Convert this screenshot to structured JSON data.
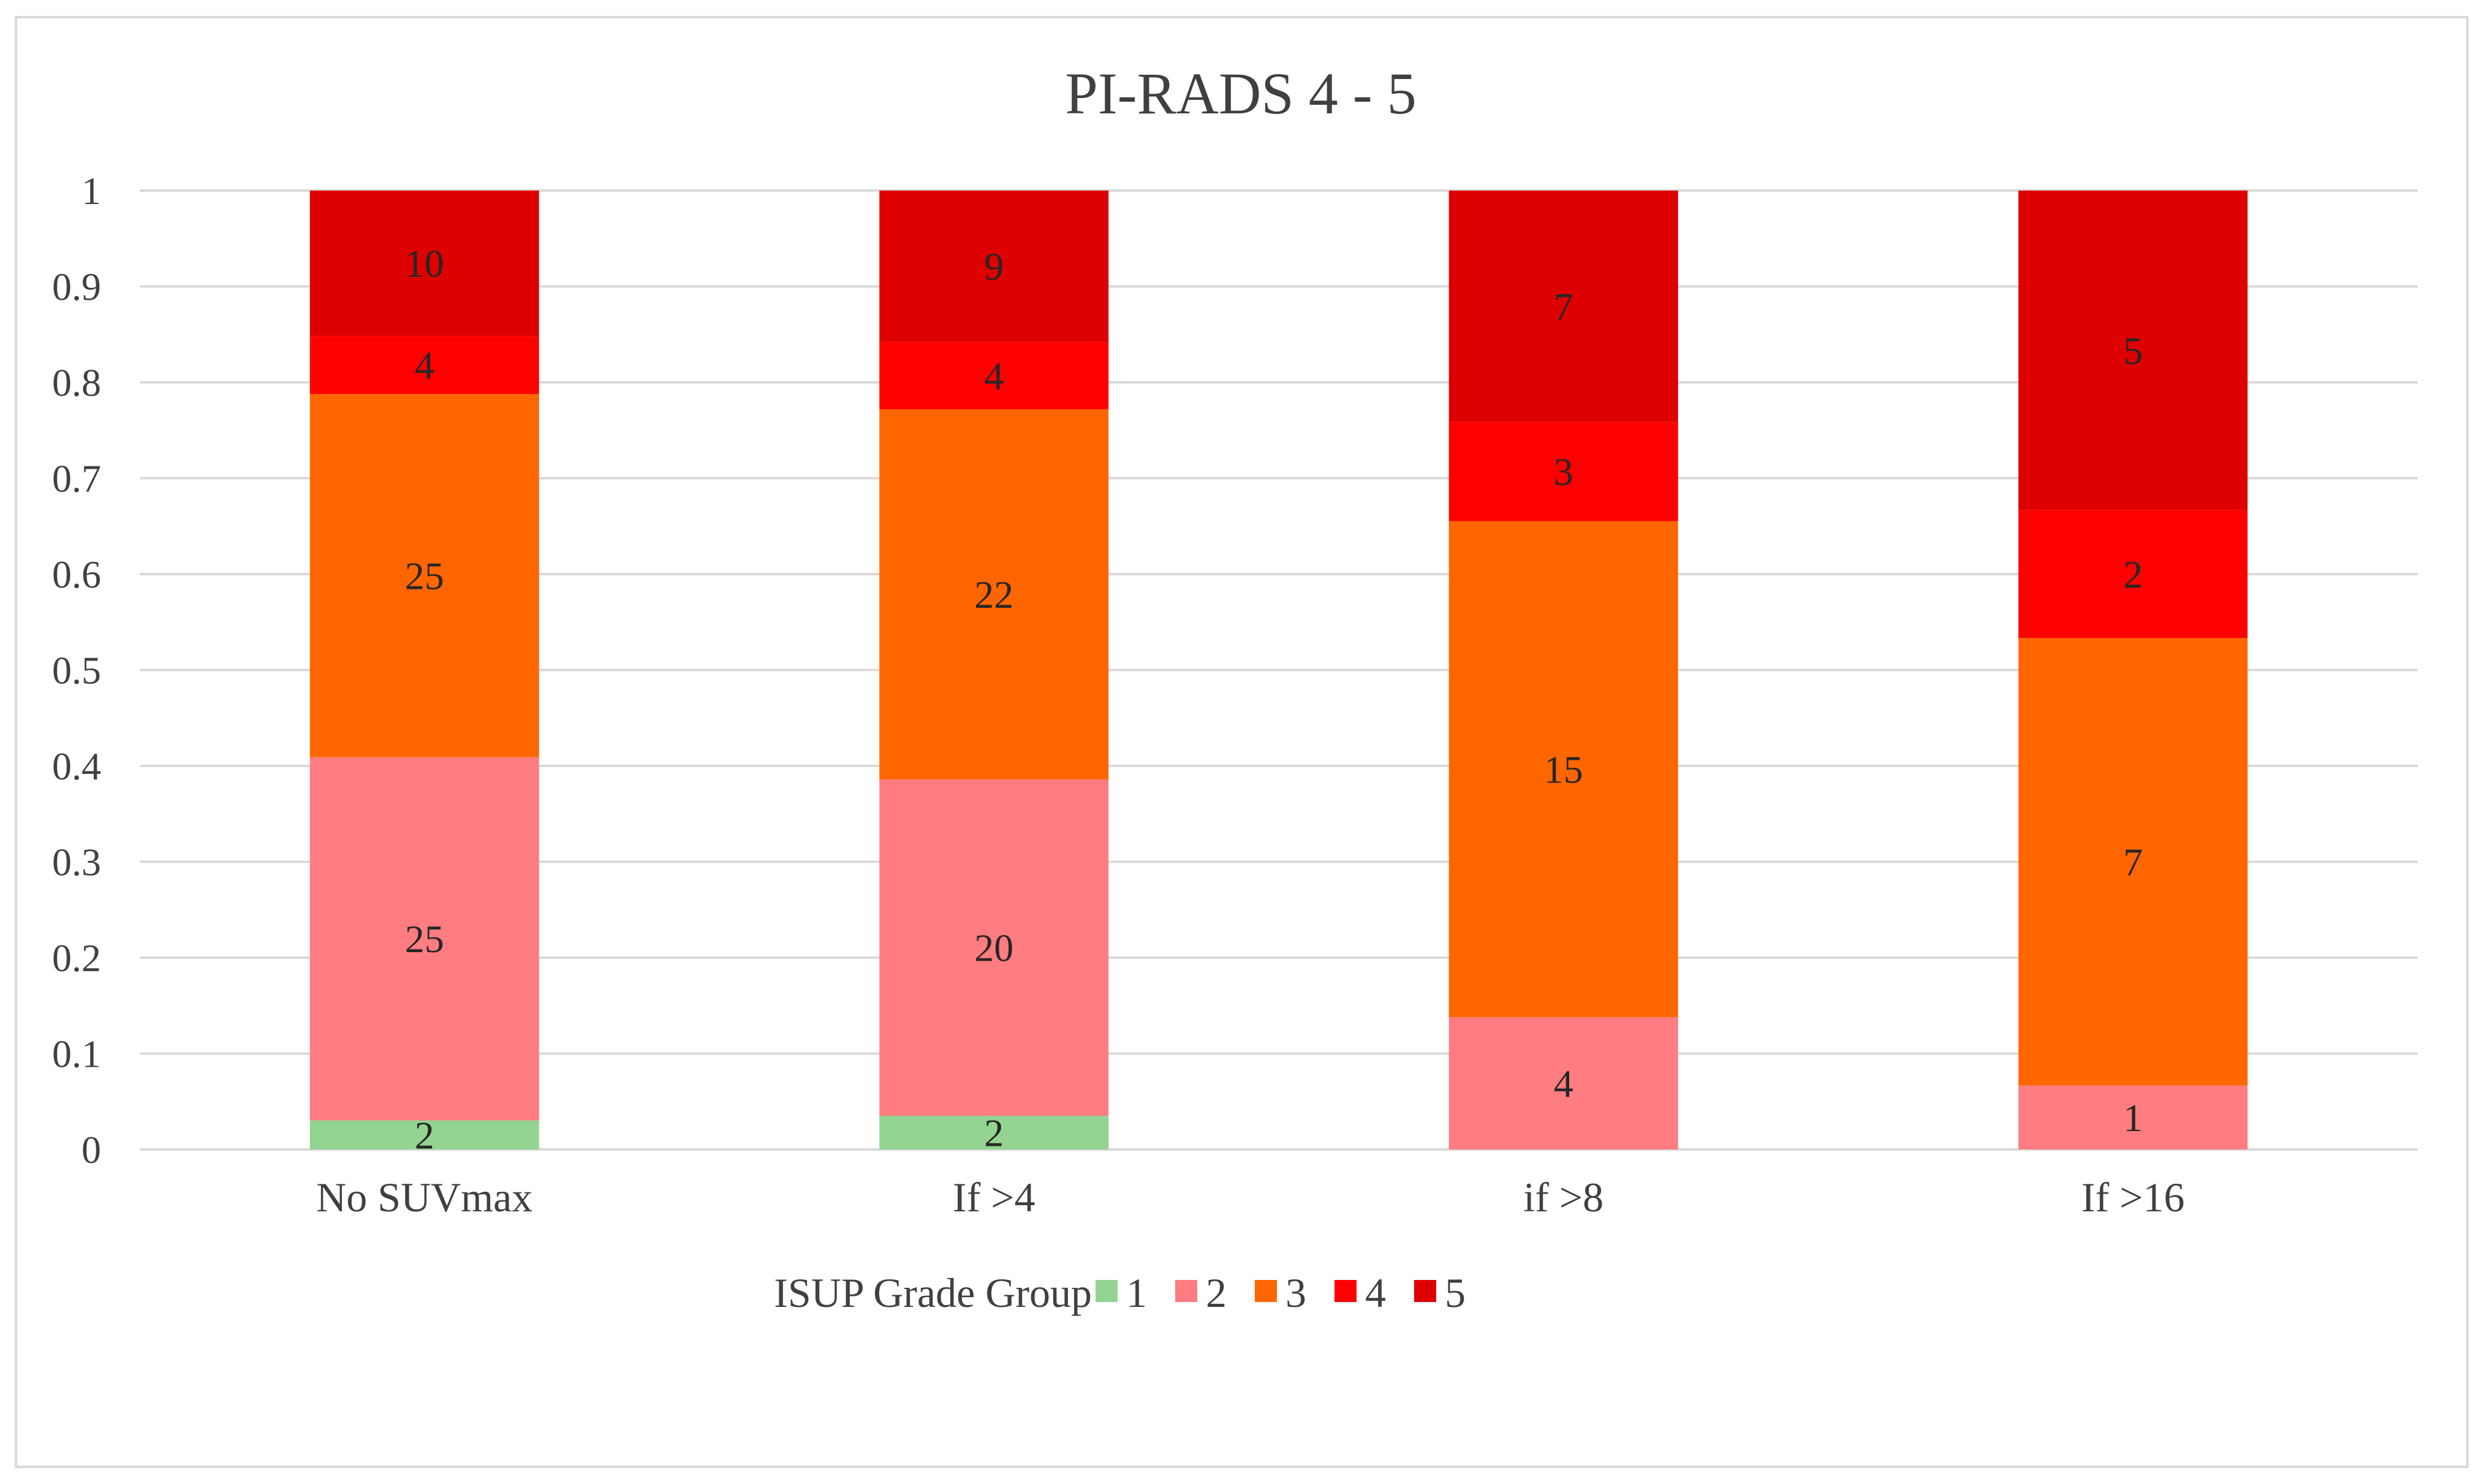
{
  "chart_data": {
    "type": "bar",
    "stacked": true,
    "normalized": true,
    "title": "PI-RADS 4 - 5",
    "xlabel": "",
    "ylabel": "",
    "ylim": [
      0,
      1
    ],
    "yticks": [
      "0",
      "0.1",
      "0.2",
      "0.3",
      "0.4",
      "0.5",
      "0.6",
      "0.7",
      "0.8",
      "0.9",
      "1"
    ],
    "categories": [
      "No SUVmax",
      "If >4",
      "if >8",
      "If >16"
    ],
    "legend_title": "ISUP Grade Group",
    "legend_position": "bottom",
    "grid": true,
    "series": [
      {
        "name": "1",
        "color": "#92d490",
        "values": [
          2,
          2,
          0,
          0
        ]
      },
      {
        "name": "2",
        "color": "#ff7c80",
        "values": [
          25,
          20,
          4,
          1
        ]
      },
      {
        "name": "3",
        "color": "#ff6600",
        "values": [
          25,
          22,
          15,
          7
        ]
      },
      {
        "name": "4",
        "color": "#ff0000",
        "values": [
          4,
          4,
          3,
          2
        ]
      },
      {
        "name": "5",
        "color": "#de0000",
        "values": [
          10,
          9,
          7,
          5
        ]
      }
    ]
  }
}
